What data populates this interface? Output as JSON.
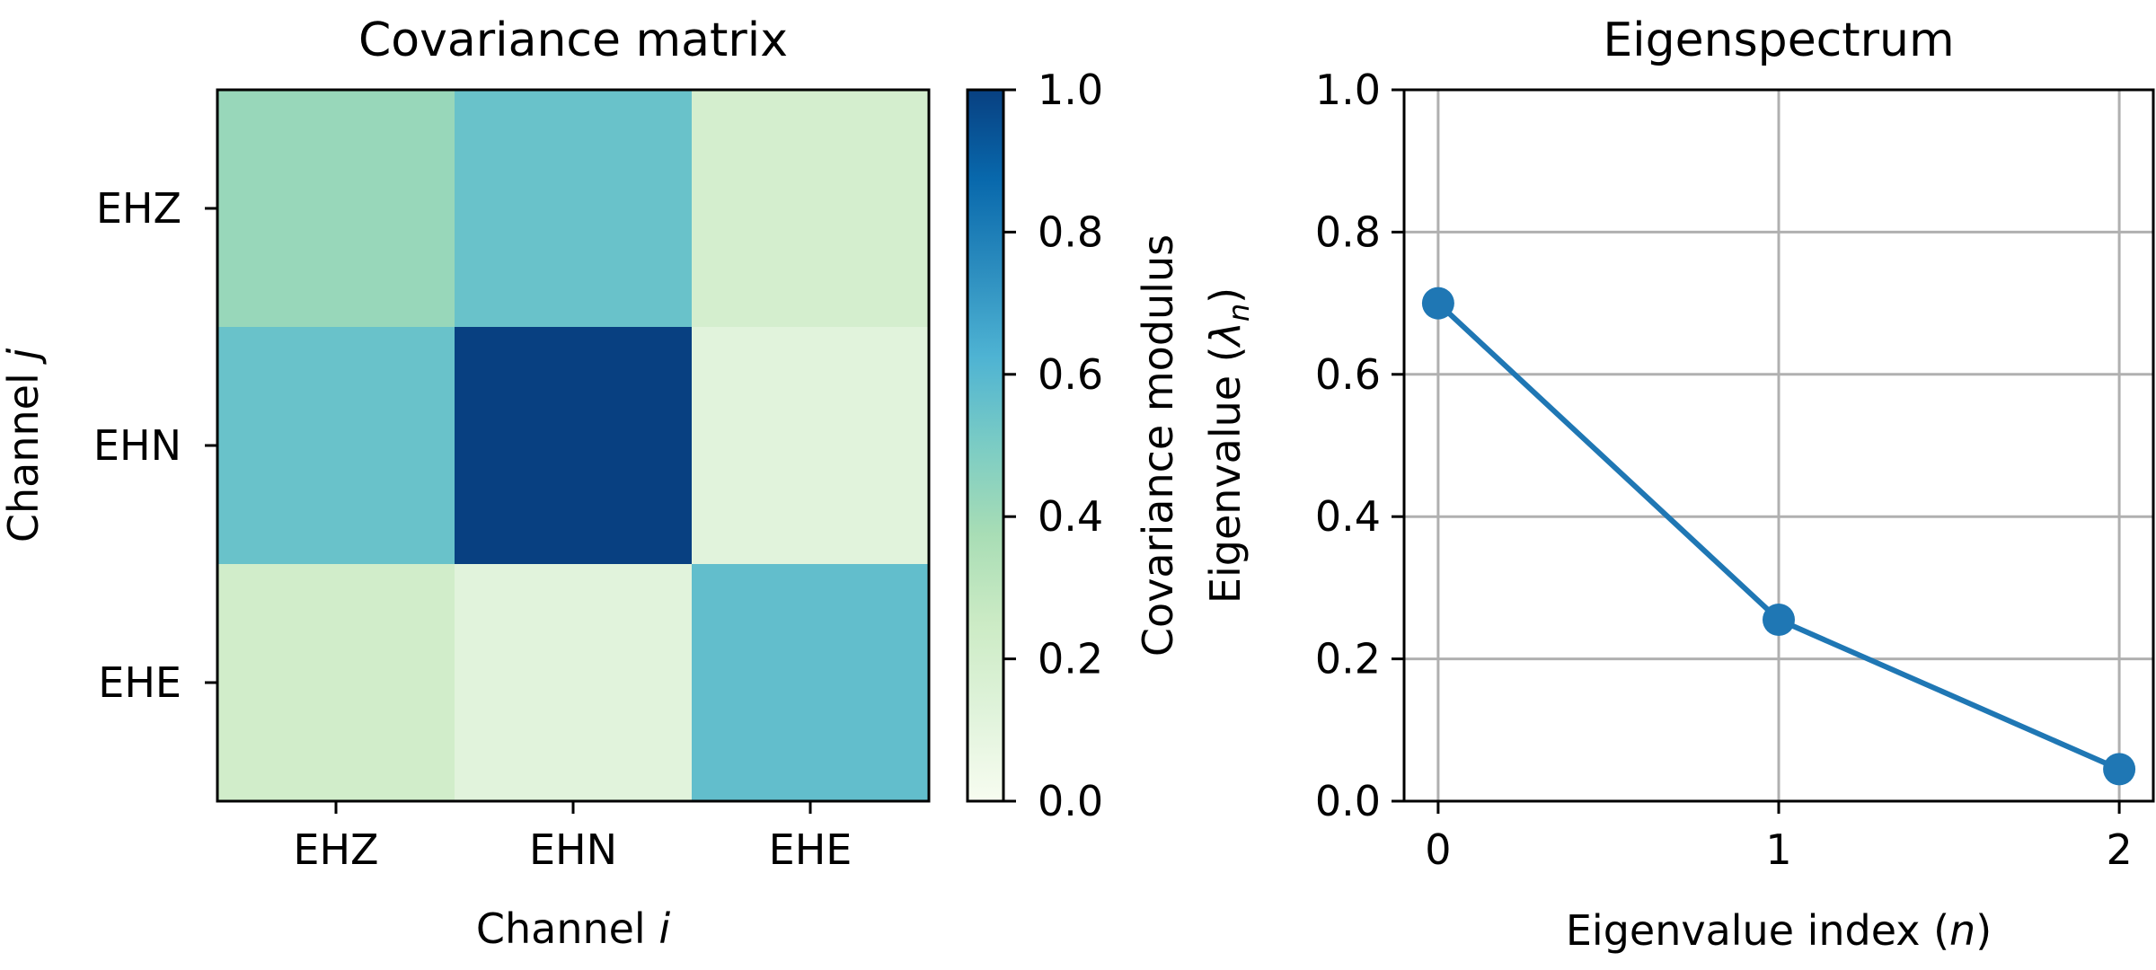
{
  "chart_data": [
    {
      "type": "heatmap",
      "title": "Covariance matrix",
      "xlabel_prefix": "Channel ",
      "xlabel_var": "i",
      "ylabel_prefix": "Channel ",
      "ylabel_var": "j",
      "x_categories": [
        "EHZ",
        "EHN",
        "EHE"
      ],
      "y_categories": [
        "EHZ",
        "EHN",
        "EHE"
      ],
      "values": [
        [
          0.42,
          0.55,
          0.2
        ],
        [
          0.55,
          1.0,
          0.12
        ],
        [
          0.22,
          0.12,
          0.57
        ]
      ],
      "colorbar": {
        "label": "Covariance modulus",
        "range": [
          0.0,
          1.0
        ],
        "ticks": [
          0.0,
          0.2,
          0.4,
          0.6,
          0.8,
          1.0
        ],
        "tick_labels": [
          "0.0",
          "0.2",
          "0.4",
          "0.6",
          "0.8",
          "1.0"
        ],
        "colormap": "GnBu",
        "colormap_stops": [
          [
            0.0,
            "#f7fcf0"
          ],
          [
            0.125,
            "#e0f3db"
          ],
          [
            0.25,
            "#ccebc5"
          ],
          [
            0.375,
            "#a8ddb5"
          ],
          [
            0.5,
            "#7bccc4"
          ],
          [
            0.625,
            "#4eb3d3"
          ],
          [
            0.75,
            "#2b8cbe"
          ],
          [
            0.875,
            "#0868ac"
          ],
          [
            1.0,
            "#084081"
          ]
        ]
      }
    },
    {
      "type": "line",
      "title": "Eigenspectrum",
      "xlabel_prefix": "Eigenvalue index (",
      "xlabel_var": "n",
      "xlabel_suffix": ")",
      "ylabel_prefix": "Eigenvalue (",
      "ylabel_var": "λ",
      "ylabel_sub": "n",
      "ylabel_suffix": ")",
      "x": [
        0,
        1,
        2
      ],
      "y": [
        0.7,
        0.255,
        0.045
      ],
      "xlim": [
        -0.1,
        2.1
      ],
      "ylim": [
        0.0,
        1.0
      ],
      "xticks": [
        0,
        1,
        2
      ],
      "xtick_labels": [
        "0",
        "1",
        "2"
      ],
      "yticks": [
        0.0,
        0.2,
        0.4,
        0.6,
        0.8,
        1.0
      ],
      "ytick_labels": [
        "0.0",
        "0.2",
        "0.4",
        "0.6",
        "0.8",
        "1.0"
      ],
      "grid": true,
      "line_color": "#1f77b4",
      "marker": "circle"
    }
  ]
}
